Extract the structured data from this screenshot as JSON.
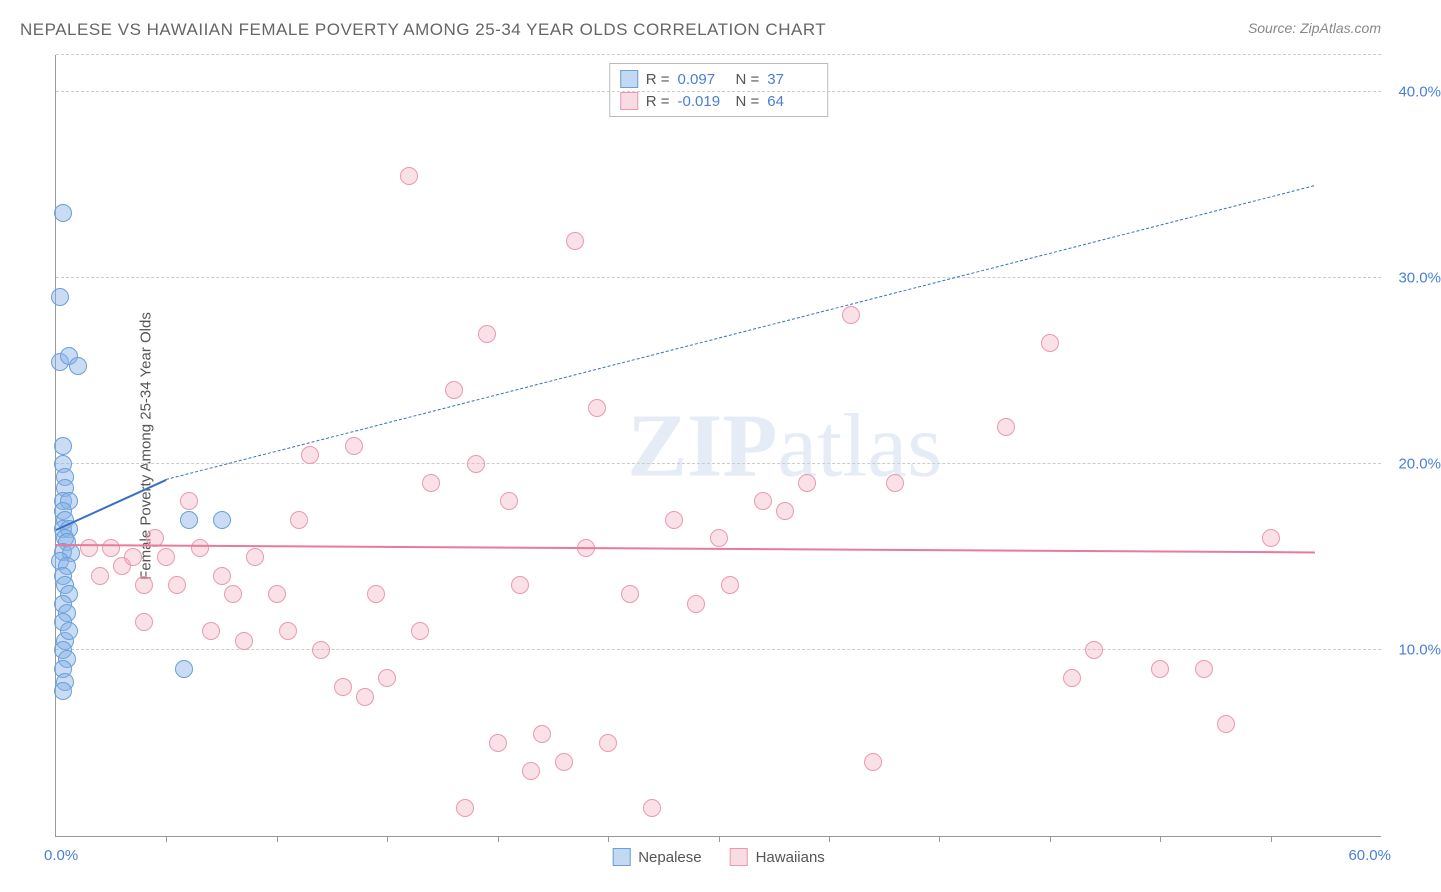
{
  "title": "NEPALESE VS HAWAIIAN FEMALE POVERTY AMONG 25-34 YEAR OLDS CORRELATION CHART",
  "source_label": "Source: ZipAtlas.com",
  "y_axis_label": "Female Poverty Among 25-34 Year Olds",
  "watermark_bold": "ZIP",
  "watermark_rest": "atlas",
  "chart": {
    "type": "scatter",
    "xlim": [
      0,
      60
    ],
    "ylim": [
      0,
      42
    ],
    "x_origin_label": "0.0%",
    "x_max_label": "60.0%",
    "y_ticks": [
      10,
      20,
      30,
      40
    ],
    "y_tick_labels": [
      "10.0%",
      "20.0%",
      "30.0%",
      "40.0%"
    ],
    "x_tick_positions": [
      5,
      10,
      15,
      20,
      25,
      30,
      35,
      40,
      45,
      50,
      55
    ],
    "grid_color": "#cccccc",
    "background_color": "#ffffff",
    "point_radius": 9,
    "series": [
      {
        "name": "Nepalese",
        "color_fill": "rgba(135,178,230,0.45)",
        "color_stroke": "#6a9fd8",
        "R": "0.097",
        "N": "37",
        "trend": {
          "x1": 0,
          "y1": 16.5,
          "x2_solid": 5,
          "y2_solid": 19.2,
          "x2_dash": 57,
          "y2_dash": 35,
          "color": "#3a6fc4",
          "width": 2
        },
        "points": [
          [
            0.3,
            33.5
          ],
          [
            0.2,
            29
          ],
          [
            0.2,
            25.5
          ],
          [
            0.6,
            25.8
          ],
          [
            1.0,
            25.3
          ],
          [
            0.3,
            21
          ],
          [
            0.3,
            20
          ],
          [
            0.4,
            19.3
          ],
          [
            0.4,
            18.7
          ],
          [
            0.3,
            18
          ],
          [
            0.6,
            18
          ],
          [
            0.3,
            17.5
          ],
          [
            0.4,
            17
          ],
          [
            0.3,
            16.5
          ],
          [
            0.6,
            16.5
          ],
          [
            0.4,
            16
          ],
          [
            0.5,
            15.8
          ],
          [
            0.3,
            15.3
          ],
          [
            0.7,
            15.2
          ],
          [
            0.2,
            14.8
          ],
          [
            0.5,
            14.5
          ],
          [
            0.3,
            14
          ],
          [
            0.4,
            13.5
          ],
          [
            0.6,
            13
          ],
          [
            0.3,
            12.5
          ],
          [
            0.5,
            12
          ],
          [
            0.3,
            11.5
          ],
          [
            0.4,
            10.5
          ],
          [
            0.3,
            10
          ],
          [
            0.5,
            9.5
          ],
          [
            0.3,
            9
          ],
          [
            0.4,
            8.3
          ],
          [
            0.3,
            7.8
          ],
          [
            5.8,
            9
          ],
          [
            6,
            17
          ],
          [
            7.5,
            17
          ],
          [
            0.6,
            11
          ]
        ]
      },
      {
        "name": "Hawaiians",
        "color_fill": "rgba(240,165,185,0.35)",
        "color_stroke": "#e89ab0",
        "R": "-0.019",
        "N": "64",
        "trend": {
          "x1": 0,
          "y1": 15.7,
          "x2_solid": 57,
          "y2_solid": 15.3,
          "color": "#e87a9a",
          "width": 2.5
        },
        "points": [
          [
            1.5,
            15.5
          ],
          [
            2,
            14
          ],
          [
            2.5,
            15.5
          ],
          [
            3,
            14.5
          ],
          [
            3.5,
            15
          ],
          [
            4,
            13.5
          ],
          [
            4.5,
            16
          ],
          [
            5,
            15
          ],
          [
            5.5,
            13.5
          ],
          [
            6,
            18
          ],
          [
            6.5,
            15.5
          ],
          [
            7,
            11
          ],
          [
            7.5,
            14
          ],
          [
            8,
            13
          ],
          [
            8.5,
            10.5
          ],
          [
            9,
            15
          ],
          [
            10,
            13
          ],
          [
            10.5,
            11
          ],
          [
            11,
            17
          ],
          [
            12,
            10
          ],
          [
            13,
            8
          ],
          [
            13.5,
            21
          ],
          [
            14,
            7.5
          ],
          [
            15,
            8.5
          ],
          [
            16,
            35.5
          ],
          [
            17,
            19
          ],
          [
            18,
            24
          ],
          [
            18.5,
            1.5
          ],
          [
            19,
            20
          ],
          [
            19.5,
            27
          ],
          [
            20,
            5
          ],
          [
            21,
            13.5
          ],
          [
            21.5,
            3.5
          ],
          [
            22,
            5.5
          ],
          [
            23,
            4
          ],
          [
            23.5,
            32
          ],
          [
            24,
            15.5
          ],
          [
            24.5,
            23
          ],
          [
            25,
            5
          ],
          [
            26,
            13
          ],
          [
            27,
            1.5
          ],
          [
            28,
            17
          ],
          [
            29,
            12.5
          ],
          [
            30,
            16
          ],
          [
            30.5,
            13.5
          ],
          [
            32,
            18
          ],
          [
            33,
            17.5
          ],
          [
            34,
            19
          ],
          [
            36,
            28
          ],
          [
            37,
            4
          ],
          [
            38,
            19
          ],
          [
            43,
            22
          ],
          [
            45,
            26.5
          ],
          [
            46,
            8.5
          ],
          [
            47,
            10
          ],
          [
            50,
            9
          ],
          [
            52,
            9
          ],
          [
            53,
            6
          ],
          [
            55,
            16
          ],
          [
            4,
            11.5
          ],
          [
            11.5,
            20.5
          ],
          [
            14.5,
            13
          ],
          [
            16.5,
            11
          ],
          [
            20.5,
            18
          ]
        ]
      }
    ]
  },
  "legend_bottom": [
    {
      "swatch": "nepalese",
      "label": "Nepalese"
    },
    {
      "swatch": "hawaiian",
      "label": "Hawaiians"
    }
  ]
}
